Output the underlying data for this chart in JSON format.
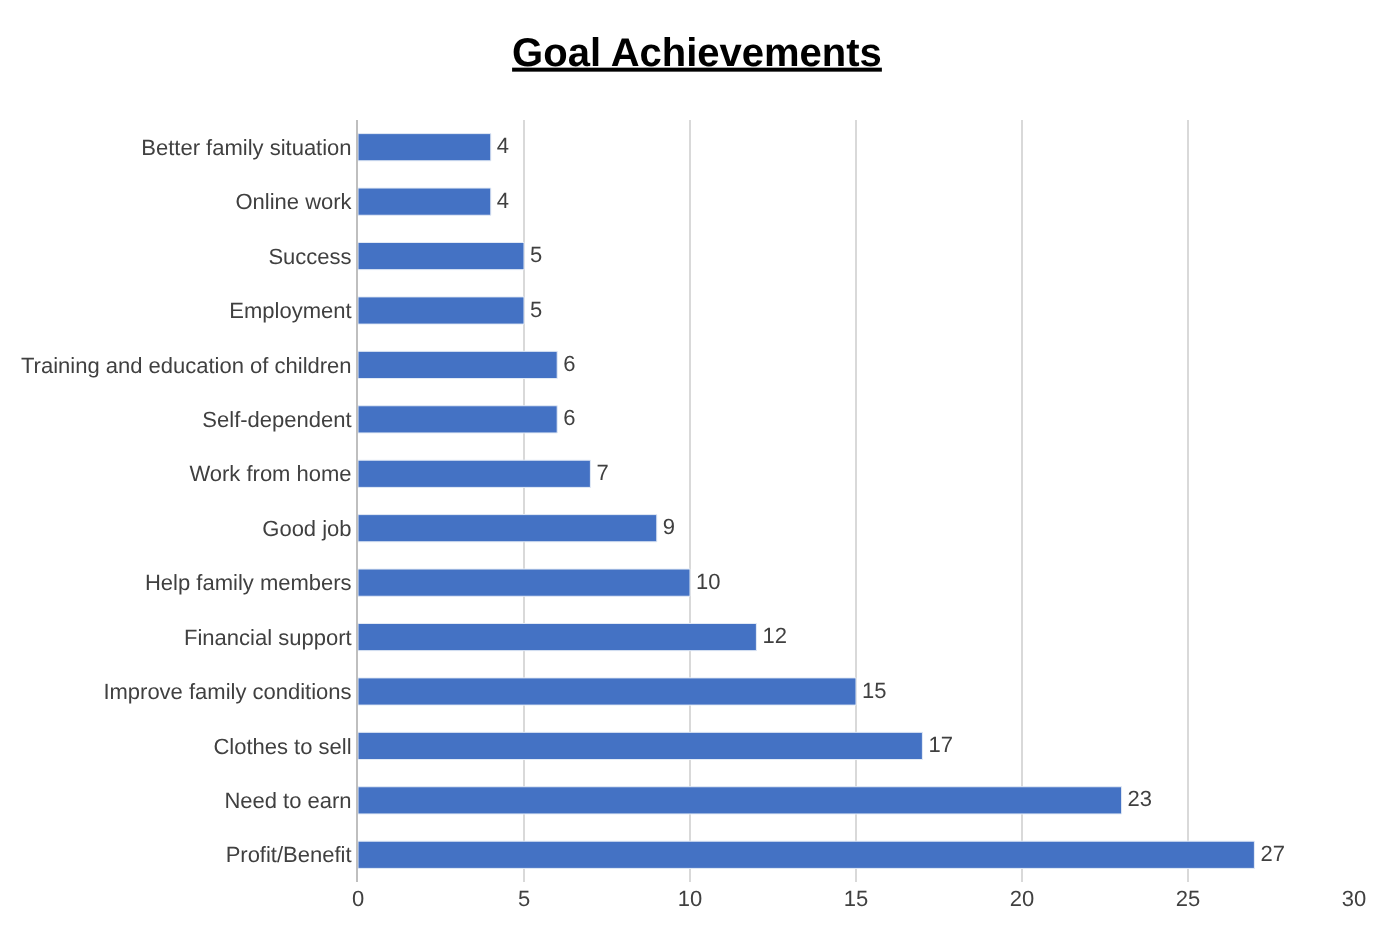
{
  "chart_data": {
    "type": "bar",
    "orientation": "horizontal",
    "title": "Goal Achievements",
    "categories": [
      "Better family situation",
      "Online work",
      "Success",
      "Employment",
      "Training and education of children",
      "Self-dependent",
      "Work from home",
      "Good job",
      "Help family members",
      "Financial support",
      "Improve family conditions",
      "Clothes to sell",
      "Need to earn",
      "Profit/Benefit"
    ],
    "values": [
      4,
      4,
      5,
      5,
      6,
      6,
      7,
      9,
      10,
      12,
      15,
      17,
      23,
      27
    ],
    "color": "#4472c4",
    "xlim": [
      0,
      30
    ],
    "xticks": [
      0,
      5,
      10,
      15,
      20,
      25,
      30
    ],
    "grid": "x",
    "data_labels": true
  }
}
